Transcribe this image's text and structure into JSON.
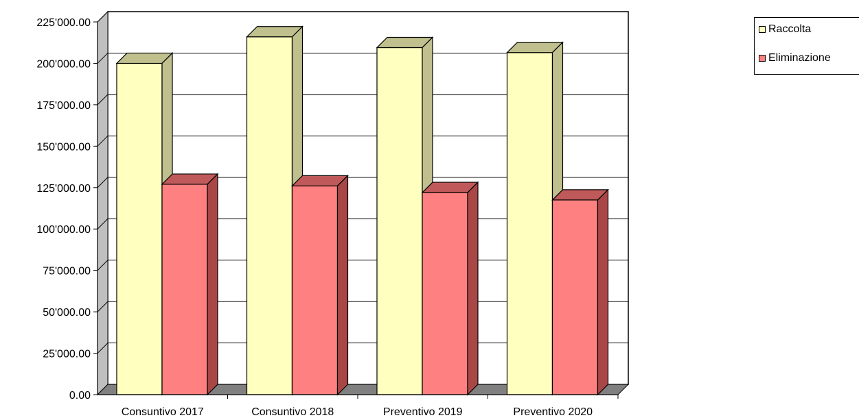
{
  "chart_data": {
    "type": "bar",
    "categories": [
      "Consuntivo 2017",
      "Consuntivo 2018",
      "Preventivo 2019",
      "Preventivo 2020"
    ],
    "series": [
      {
        "name": "Raccolta",
        "values": [
          200000,
          216000,
          209500,
          206500
        ],
        "color": "#FFFFC0",
        "side_color": "#C0C08F",
        "top_color": "#C0C08F"
      },
      {
        "name": "Eliminazione",
        "values": [
          127000,
          126000,
          122000,
          117500
        ],
        "color": "#FF8080",
        "side_color": "#A94747",
        "top_color": "#C05A5A"
      }
    ],
    "ylim": [
      0,
      225000
    ],
    "yticks": [
      "0.00",
      "25'000.00",
      "50'000.00",
      "75'000.00",
      "100'000.00",
      "125'000.00",
      "150'000.00",
      "175'000.00",
      "200'000.00",
      "225'000.00"
    ],
    "grid": true,
    "legend_position": "top-right",
    "title": "",
    "xlabel": "",
    "ylabel": ""
  }
}
